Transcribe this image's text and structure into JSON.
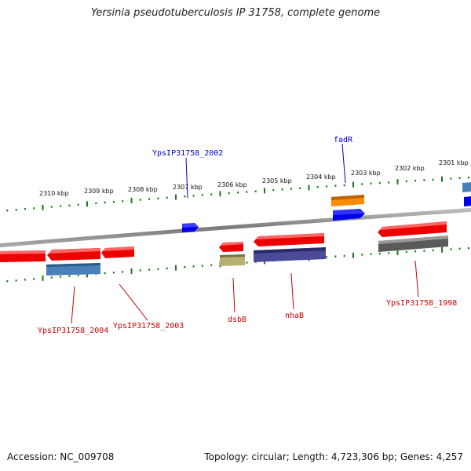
{
  "title": "Yersinia pseudotuberculosis IP 31758, complete genome",
  "accession": "Accession: NC_009708",
  "topology": "Topology: circular; Length: 4,723,306 bp; Genes: 4,257",
  "scale": {
    "labels": [
      "2301 kbp",
      "2302 kbp",
      "2303 kbp",
      "2304 kbp",
      "2305 kbp",
      "2306 kbp",
      "2307 kbp",
      "2308 kbp",
      "2309 kbp",
      "2310 kbp"
    ]
  },
  "gene_labels": [
    {
      "id": "YpsIP31758_2002",
      "text": "YpsIP31758_2002",
      "color": "#0000cc"
    },
    {
      "id": "fadR",
      "text": "fadR",
      "color": "#0000cc"
    },
    {
      "id": "YpsIP31758_2004",
      "text": "YpsIP31758_2004",
      "color": "#cc0000"
    },
    {
      "id": "YpsIP31758_2003",
      "text": "YpsIP31758_2003",
      "color": "#cc0000"
    },
    {
      "id": "dsbB",
      "text": "dsbB",
      "color": "#cc0000"
    },
    {
      "id": "nhaB",
      "text": "nhaB",
      "color": "#cc0000"
    },
    {
      "id": "YpsIP31758_1998",
      "text": "YpsIP31758_1998",
      "color": "#cc0000"
    }
  ],
  "colors": {
    "gene_forward": "#0000ee",
    "gene_reverse": "#ee0000",
    "tick": "#1a7a1a",
    "backbone": "#888888"
  }
}
